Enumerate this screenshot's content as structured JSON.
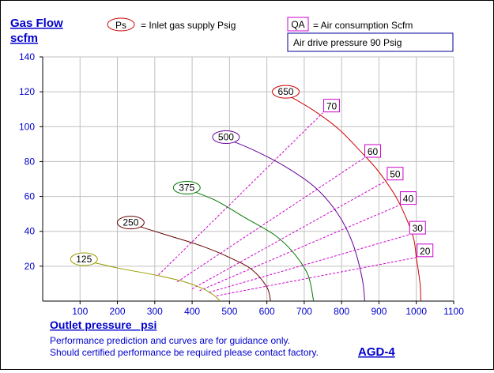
{
  "chart_data": {
    "type": "line",
    "title_y": [
      "Gas Flow",
      "scfm"
    ],
    "xlabel": "Outlet pressure   psi",
    "xlim": [
      0,
      1100
    ],
    "ylim": [
      0,
      140
    ],
    "x_ticks": [
      100,
      200,
      300,
      400,
      500,
      600,
      700,
      800,
      900,
      1000,
      1100
    ],
    "y_ticks": [
      20,
      40,
      60,
      80,
      100,
      120,
      140
    ],
    "grid": true,
    "legend": {
      "ps_symbol": "Ps",
      "ps_text": "= Inlet gas supply  Psig",
      "qa_symbol": "QA",
      "qa_text": "= Air consumption  Scfm",
      "air_drive": "Air drive pressure  90 Psig"
    },
    "series": [
      {
        "name": "125",
        "color": "#999900",
        "points": [
          [
            100,
            24
          ],
          [
            200,
            19
          ],
          [
            300,
            15
          ],
          [
            380,
            11
          ],
          [
            430,
            7
          ],
          [
            460,
            3
          ],
          [
            475,
            0
          ]
        ]
      },
      {
        "name": "250",
        "color": "#660000",
        "points": [
          [
            225,
            45
          ],
          [
            330,
            38
          ],
          [
            420,
            32
          ],
          [
            500,
            25
          ],
          [
            560,
            18
          ],
          [
            600,
            8
          ],
          [
            610,
            0
          ]
        ]
      },
      {
        "name": "375",
        "color": "#007700",
        "points": [
          [
            375,
            65
          ],
          [
            460,
            58
          ],
          [
            540,
            48
          ],
          [
            620,
            38
          ],
          [
            670,
            28
          ],
          [
            710,
            15
          ],
          [
            725,
            0
          ]
        ]
      },
      {
        "name": "500",
        "color": "#660099",
        "points": [
          [
            480,
            94
          ],
          [
            560,
            87
          ],
          [
            650,
            77
          ],
          [
            730,
            65
          ],
          [
            790,
            50
          ],
          [
            830,
            33
          ],
          [
            855,
            13
          ],
          [
            862,
            0
          ]
        ]
      },
      {
        "name": "650",
        "color": "#cc0000",
        "points": [
          [
            640,
            120
          ],
          [
            720,
            110
          ],
          [
            790,
            99
          ],
          [
            850,
            86
          ],
          [
            900,
            74
          ],
          [
            950,
            58
          ],
          [
            990,
            38
          ],
          [
            1000,
            25
          ],
          [
            1010,
            10
          ],
          [
            1012,
            0
          ]
        ]
      }
    ],
    "qa_lines": [
      {
        "name": "70",
        "color": "#cc00cc",
        "points": [
          [
            310,
            15
          ],
          [
            750,
            108
          ]
        ]
      },
      {
        "name": "60",
        "color": "#cc00cc",
        "points": [
          [
            360,
            11
          ],
          [
            860,
            82
          ]
        ]
      },
      {
        "name": "50",
        "color": "#cc00cc",
        "points": [
          [
            400,
            7
          ],
          [
            920,
            69
          ]
        ]
      },
      {
        "name": "40",
        "color": "#cc00cc",
        "points": [
          [
            420,
            6
          ],
          [
            955,
            55
          ]
        ]
      },
      {
        "name": "30",
        "color": "#cc00cc",
        "points": [
          [
            445,
            5
          ],
          [
            980,
            38
          ]
        ]
      },
      {
        "name": "20",
        "color": "#cc00cc",
        "points": [
          [
            465,
            3
          ],
          [
            1000,
            25
          ]
        ]
      }
    ],
    "footer_lines": [
      "Performance prediction and curves are for guidance only.",
      "Should certified performance be required please contact factory."
    ],
    "model": "AGD-4"
  }
}
